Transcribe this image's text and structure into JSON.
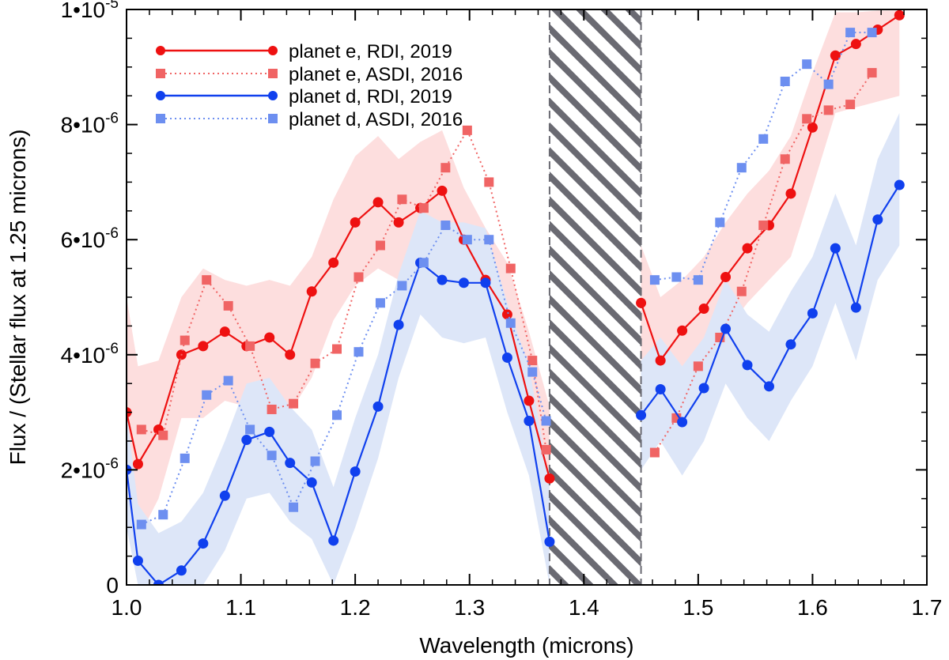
{
  "chart_data": {
    "type": "line",
    "xlabel": "Wavelength (microns)",
    "ylabel": "Flux / (Stellar flux at 1.25 microns)",
    "xlim": [
      1.0,
      1.7
    ],
    "ylim": [
      0,
      1e-05
    ],
    "x_ticks": [
      {
        "value": 1.0,
        "label": "1.0"
      },
      {
        "value": 1.1,
        "label": "1.1"
      },
      {
        "value": 1.2,
        "label": "1.2"
      },
      {
        "value": 1.3,
        "label": "1.3"
      },
      {
        "value": 1.4,
        "label": "1.4"
      },
      {
        "value": 1.5,
        "label": "1.5"
      },
      {
        "value": 1.6,
        "label": "1.6"
      },
      {
        "value": 1.7,
        "label": "1.7"
      }
    ],
    "y_ticks": [
      {
        "value": 0,
        "label": "0",
        "base": "0",
        "exp": ""
      },
      {
        "value": 2e-06,
        "label": "2•10-6",
        "base": "2•10",
        "exp": "-6"
      },
      {
        "value": 4e-06,
        "label": "4•10-6",
        "base": "4•10",
        "exp": "-6"
      },
      {
        "value": 6e-06,
        "label": "6•10-6",
        "base": "6•10",
        "exp": "-6"
      },
      {
        "value": 8e-06,
        "label": "8•10-6",
        "base": "8•10",
        "exp": "-6"
      },
      {
        "value": 1e-05,
        "label": "1•10-5",
        "base": "1•10",
        "exp": "-5"
      }
    ],
    "masked_region": {
      "x_range": [
        1.37,
        1.45
      ],
      "fill": "diagonal-hatch",
      "color": "#6a6a72"
    },
    "series": [
      {
        "name": "planet e, RDI, 2019",
        "color": "#ee1111",
        "style": "solid",
        "marker": "circle",
        "band_color": "#fddede",
        "segments": [
          [
            [
              1.0,
              3e-06
            ],
            [
              1.01,
              2.1e-06
            ],
            [
              1.028,
              2.7e-06
            ],
            [
              1.048,
              4e-06
            ],
            [
              1.067,
              4.15e-06
            ],
            [
              1.086,
              4.4e-06
            ],
            [
              1.105,
              4.15e-06
            ],
            [
              1.125,
              4.3e-06
            ],
            [
              1.143,
              4e-06
            ],
            [
              1.162,
              5.1e-06
            ],
            [
              1.181,
              5.6e-06
            ],
            [
              1.2,
              6.3e-06
            ],
            [
              1.22,
              6.65e-06
            ],
            [
              1.238,
              6.3e-06
            ],
            [
              1.257,
              6.55e-06
            ],
            [
              1.276,
              6.85e-06
            ],
            [
              1.295,
              6e-06
            ],
            [
              1.314,
              5.3e-06
            ],
            [
              1.333,
              4.7e-06
            ],
            [
              1.352,
              3.2e-06
            ],
            [
              1.37,
              1.85e-06
            ]
          ],
          [
            [
              1.45,
              4.9e-06
            ],
            [
              1.467,
              3.9e-06
            ],
            [
              1.486,
              4.42e-06
            ],
            [
              1.505,
              4.8e-06
            ],
            [
              1.524,
              5.35e-06
            ],
            [
              1.543,
              5.85e-06
            ],
            [
              1.562,
              6.25e-06
            ],
            [
              1.581,
              6.8e-06
            ],
            [
              1.6,
              7.95e-06
            ],
            [
              1.62,
              9.2e-06
            ],
            [
              1.638,
              9.4e-06
            ],
            [
              1.657,
              9.65e-06
            ],
            [
              1.676,
              9.9e-06
            ]
          ]
        ],
        "band": [
          [
            [
              1.0,
              5e-06,
              1.5e-06
            ],
            [
              1.01,
              3.8e-06,
              8e-07
            ],
            [
              1.028,
              3.9e-06,
              1.5e-06
            ],
            [
              1.048,
              5e-06,
              2.9e-06
            ],
            [
              1.067,
              5.5e-06,
              2.9e-06
            ],
            [
              1.086,
              5.3e-06,
              3.2e-06
            ],
            [
              1.105,
              5.2e-06,
              3.1e-06
            ],
            [
              1.125,
              5.3e-06,
              3.2e-06
            ],
            [
              1.143,
              5.2e-06,
              3e-06
            ],
            [
              1.162,
              5.7e-06,
              3.6e-06
            ],
            [
              1.181,
              6.7e-06,
              4.6e-06
            ],
            [
              1.2,
              7.45e-06,
              5.2e-06
            ],
            [
              1.22,
              7.8e-06,
              5.5e-06
            ],
            [
              1.238,
              7.4e-06,
              5.3e-06
            ],
            [
              1.257,
              7.7e-06,
              5.5e-06
            ],
            [
              1.276,
              7.9e-06,
              5.8e-06
            ],
            [
              1.295,
              6.9e-06,
              4.9e-06
            ],
            [
              1.314,
              6.2e-06,
              4.3e-06
            ],
            [
              1.333,
              5.6e-06,
              3.9e-06
            ],
            [
              1.352,
              4.4e-06,
              2.6e-06
            ],
            [
              1.37,
              3.1e-06,
              1.2e-06
            ]
          ],
          [
            [
              1.45,
              5.9e-06,
              3.9e-06
            ],
            [
              1.467,
              5e-06,
              3.2e-06
            ],
            [
              1.486,
              5.3e-06,
              3.6e-06
            ],
            [
              1.505,
              5.7e-06,
              4e-06
            ],
            [
              1.524,
              6.3e-06,
              4.4e-06
            ],
            [
              1.543,
              6.8e-06,
              4.9e-06
            ],
            [
              1.562,
              7.2e-06,
              5.3e-06
            ],
            [
              1.581,
              7.8e-06,
              5.7e-06
            ],
            [
              1.6,
              8.9e-06,
              6.9e-06
            ],
            [
              1.62,
              9.95e-06,
              8.2e-06
            ],
            [
              1.638,
              9.95e-06,
              8.3e-06
            ],
            [
              1.657,
              9.98e-06,
              8.4e-06
            ],
            [
              1.676,
              9.98e-06,
              8.5e-06
            ]
          ]
        ]
      },
      {
        "name": "planet e, ASDI, 2016",
        "color": "#f06464",
        "style": "dotted",
        "marker": "square",
        "segments": [
          [
            [
              1.013,
              2.7e-06
            ],
            [
              1.032,
              2.6e-06
            ],
            [
              1.051,
              4.25e-06
            ],
            [
              1.07,
              5.3e-06
            ],
            [
              1.089,
              4.85e-06
            ],
            [
              1.108,
              4.15e-06
            ],
            [
              1.127,
              3.05e-06
            ],
            [
              1.146,
              3.15e-06
            ],
            [
              1.165,
              3.85e-06
            ],
            [
              1.184,
              4.1e-06
            ],
            [
              1.203,
              5.35e-06
            ],
            [
              1.222,
              5.9e-06
            ],
            [
              1.241,
              6.7e-06
            ],
            [
              1.26,
              6.55e-06
            ],
            [
              1.279,
              7.25e-06
            ],
            [
              1.298,
              7.9e-06
            ],
            [
              1.317,
              7e-06
            ],
            [
              1.336,
              5.5e-06
            ],
            [
              1.355,
              3.9e-06
            ],
            [
              1.367,
              2.35e-06
            ]
          ],
          [
            [
              1.462,
              2.3e-06
            ],
            [
              1.481,
              2.9e-06
            ],
            [
              1.5,
              3.8e-06
            ],
            [
              1.519,
              4.3e-06
            ],
            [
              1.538,
              5.1e-06
            ],
            [
              1.557,
              6.25e-06
            ],
            [
              1.576,
              7.4e-06
            ],
            [
              1.595,
              8.1e-06
            ],
            [
              1.614,
              8.25e-06
            ],
            [
              1.633,
              8.35e-06
            ],
            [
              1.652,
              8.9e-06
            ]
          ]
        ]
      },
      {
        "name": "planet d, RDI, 2019",
        "color": "#1040ee",
        "style": "solid",
        "marker": "circle",
        "band_color": "#dde6f8",
        "segments": [
          [
            [
              1.0,
              2e-06
            ],
            [
              1.01,
              4.2e-07
            ],
            [
              1.028,
              0.0
            ],
            [
              1.048,
              2.5e-07
            ],
            [
              1.067,
              7.2e-07
            ],
            [
              1.086,
              1.55e-06
            ],
            [
              1.105,
              2.52e-06
            ],
            [
              1.125,
              2.66e-06
            ],
            [
              1.143,
              2.12e-06
            ],
            [
              1.162,
              1.78e-06
            ],
            [
              1.181,
              7.7e-07
            ],
            [
              1.2,
              1.97e-06
            ],
            [
              1.22,
              3.1e-06
            ],
            [
              1.238,
              4.52e-06
            ],
            [
              1.257,
              5.6e-06
            ],
            [
              1.276,
              5.3e-06
            ],
            [
              1.295,
              5.25e-06
            ],
            [
              1.314,
              5.25e-06
            ],
            [
              1.333,
              3.95e-06
            ],
            [
              1.352,
              2.85e-06
            ],
            [
              1.37,
              7.5e-07
            ]
          ],
          [
            [
              1.45,
              2.95e-06
            ],
            [
              1.467,
              3.4e-06
            ],
            [
              1.486,
              2.83e-06
            ],
            [
              1.505,
              3.42e-06
            ],
            [
              1.524,
              4.45e-06
            ],
            [
              1.543,
              3.82e-06
            ],
            [
              1.562,
              3.45e-06
            ],
            [
              1.581,
              4.18e-06
            ],
            [
              1.6,
              4.72e-06
            ],
            [
              1.62,
              5.85e-06
            ],
            [
              1.638,
              4.82e-06
            ],
            [
              1.657,
              6.35e-06
            ],
            [
              1.676,
              6.95e-06
            ]
          ]
        ],
        "band": [
          [
            [
              1.0,
              3e-06,
              1e-06
            ],
            [
              1.01,
              1.4e-06,
              0.0
            ],
            [
              1.028,
              9e-07,
              0.0
            ],
            [
              1.048,
              1.1e-06,
              0.0
            ],
            [
              1.067,
              1.6e-06,
              0.0
            ],
            [
              1.086,
              2.5e-06,
              6e-07
            ],
            [
              1.105,
              3.5e-06,
              1.5e-06
            ],
            [
              1.125,
              3.6e-06,
              1.6e-06
            ],
            [
              1.143,
              3.1e-06,
              1.1e-06
            ],
            [
              1.162,
              2.7e-06,
              8e-07
            ],
            [
              1.181,
              1.7e-06,
              0.0
            ],
            [
              1.2,
              2.9e-06,
              1e-06
            ],
            [
              1.22,
              4e-06,
              2.2e-06
            ],
            [
              1.238,
              5.4e-06,
              3.6e-06
            ],
            [
              1.257,
              6.5e-06,
              4.7e-06
            ],
            [
              1.276,
              6.3e-06,
              4.3e-06
            ],
            [
              1.295,
              6.3e-06,
              4.2e-06
            ],
            [
              1.314,
              6.2e-06,
              4.3e-06
            ],
            [
              1.333,
              4.9e-06,
              3e-06
            ],
            [
              1.352,
              3.8e-06,
              1.9e-06
            ],
            [
              1.37,
              1.8e-06,
              0.0
            ]
          ],
          [
            [
              1.45,
              3.9e-06,
              2e-06
            ],
            [
              1.467,
              4.3e-06,
              2.5e-06
            ],
            [
              1.486,
              3.8e-06,
              1.9e-06
            ],
            [
              1.505,
              4.3e-06,
              2.5e-06
            ],
            [
              1.524,
              5.3e-06,
              3.5e-06
            ],
            [
              1.543,
              4.7e-06,
              2.9e-06
            ],
            [
              1.562,
              4.4e-06,
              2.5e-06
            ],
            [
              1.581,
              5.1e-06,
              3.2e-06
            ],
            [
              1.6,
              5.7e-06,
              3.8e-06
            ],
            [
              1.62,
              6.8e-06,
              4.9e-06
            ],
            [
              1.638,
              5.9e-06,
              3.9e-06
            ],
            [
              1.657,
              7.4e-06,
              5.3e-06
            ],
            [
              1.676,
              8.2e-06,
              5.9e-06
            ]
          ]
        ]
      },
      {
        "name": "planet d, ASDI, 2016",
        "color": "#6d8ff0",
        "style": "dotted",
        "marker": "square",
        "segments": [
          [
            [
              1.013,
              1.05e-06
            ],
            [
              1.032,
              1.22e-06
            ],
            [
              1.051,
              2.2e-06
            ],
            [
              1.07,
              3.3e-06
            ],
            [
              1.089,
              3.55e-06
            ],
            [
              1.108,
              2.7e-06
            ],
            [
              1.127,
              2.25e-06
            ],
            [
              1.146,
              1.35e-06
            ],
            [
              1.165,
              2.15e-06
            ],
            [
              1.184,
              2.95e-06
            ],
            [
              1.203,
              4.05e-06
            ],
            [
              1.222,
              4.9e-06
            ],
            [
              1.241,
              5.2e-06
            ],
            [
              1.26,
              5.6e-06
            ],
            [
              1.279,
              6.25e-06
            ],
            [
              1.298,
              6e-06
            ],
            [
              1.317,
              6e-06
            ],
            [
              1.336,
              4.55e-06
            ],
            [
              1.355,
              3.7e-06
            ],
            [
              1.367,
              2.85e-06
            ]
          ],
          [
            [
              1.462,
              5.3e-06
            ],
            [
              1.481,
              5.35e-06
            ],
            [
              1.5,
              5.3e-06
            ],
            [
              1.519,
              6.3e-06
            ],
            [
              1.538,
              7.25e-06
            ],
            [
              1.557,
              7.75e-06
            ],
            [
              1.576,
              8.75e-06
            ],
            [
              1.595,
              9.05e-06
            ],
            [
              1.614,
              8.7e-06
            ],
            [
              1.633,
              9.6e-06
            ],
            [
              1.652,
              9.6e-06
            ]
          ]
        ]
      }
    ]
  }
}
